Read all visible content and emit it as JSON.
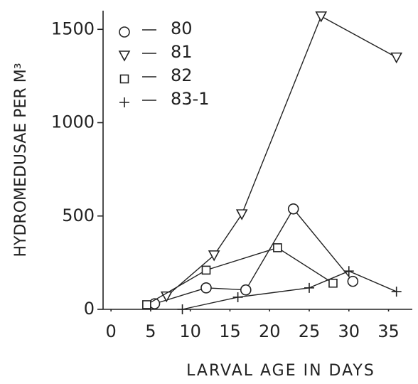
{
  "chart_data": {
    "type": "line",
    "xlabel": "LARVAL AGE IN DAYS",
    "ylabel": "HYDROMEDUSAE PER M³",
    "xlim": [
      -1,
      38
    ],
    "ylim": [
      0,
      1600
    ],
    "xticks": [
      0,
      5,
      10,
      15,
      20,
      25,
      30,
      35
    ],
    "yticks": [
      0,
      500,
      1000,
      1500
    ],
    "legend": "upper left",
    "series": [
      {
        "name": "80",
        "marker": "circle",
        "color": "#222",
        "x": [
          5.5,
          12,
          17,
          23,
          30.5
        ],
        "values": [
          30,
          115,
          104,
          538,
          150
        ]
      },
      {
        "name": "81",
        "marker": "triangle",
        "color": "#222",
        "x": [
          7,
          13,
          16.5,
          26.5,
          36
        ],
        "values": [
          70,
          290,
          510,
          1570,
          1350
        ]
      },
      {
        "name": "82",
        "marker": "square",
        "color": "#222",
        "x": [
          4.5,
          12,
          21,
          28
        ],
        "values": [
          25,
          210,
          330,
          140
        ]
      },
      {
        "name": "83-1",
        "marker": "plus",
        "color": "#222",
        "x": [
          9,
          16,
          25,
          30,
          36
        ],
        "values": [
          0,
          65,
          115,
          205,
          95
        ]
      }
    ]
  }
}
